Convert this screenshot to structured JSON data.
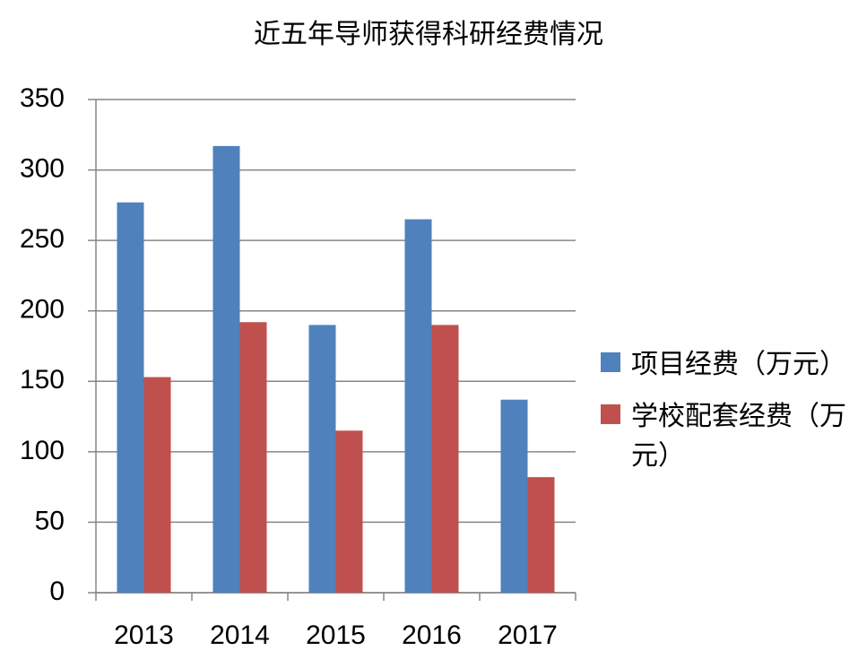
{
  "chart_data": {
    "type": "bar",
    "title": "近五年导师获得科研经费情况",
    "categories": [
      "2013",
      "2014",
      "2015",
      "2016",
      "2017"
    ],
    "series": [
      {
        "name": "项目经费（万元）",
        "color": "#4f81bd",
        "values": [
          277,
          317,
          190,
          265,
          137
        ]
      },
      {
        "name": "学校配套经费（万元）",
        "color": "#c0504d",
        "values": [
          153,
          192,
          115,
          190,
          82
        ]
      }
    ],
    "ylim": [
      0,
      350
    ],
    "yticks": [
      0,
      50,
      100,
      150,
      200,
      250,
      300,
      350
    ],
    "grid": true,
    "legend": "right"
  }
}
